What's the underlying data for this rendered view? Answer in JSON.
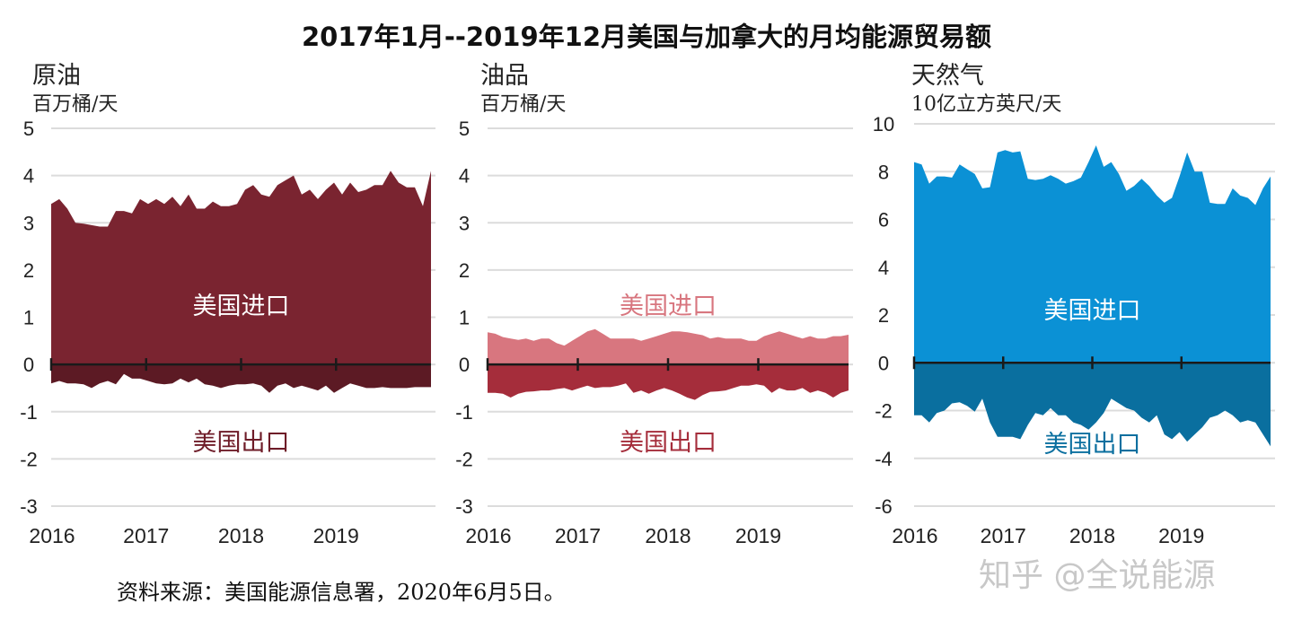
{
  "title": "2017年1月--2019年12月美国与加拿大的月均能源贸易额",
  "source": "资料来源：美国能源信息署，2020年6月5日。",
  "watermark": "知乎 @全说能源",
  "chart_data": [
    {
      "type": "area",
      "title": "原油",
      "ylabel": "百万桶/天",
      "ylim": [
        -3,
        5
      ],
      "yticks": [
        5,
        4,
        3,
        2,
        1,
        0,
        -1,
        -2,
        -3
      ],
      "xticks": [
        "2016",
        "2017",
        "2018",
        "2019"
      ],
      "x_range": [
        "2016-01",
        "2019-12"
      ],
      "grid": true,
      "colors": {
        "import": "#7a2430",
        "export": "#5c1a24",
        "import_label": "#ffffff",
        "export_label": "#6e1c28"
      },
      "series": [
        {
          "name": "美国进口",
          "values": [
            3.4,
            3.5,
            3.3,
            3.0,
            2.98,
            2.95,
            2.92,
            2.92,
            3.25,
            3.25,
            3.2,
            3.5,
            3.4,
            3.5,
            3.4,
            3.55,
            3.35,
            3.6,
            3.3,
            3.3,
            3.45,
            3.35,
            3.35,
            3.4,
            3.7,
            3.8,
            3.6,
            3.55,
            3.8,
            3.9,
            4.0,
            3.6,
            3.7,
            3.5,
            3.7,
            3.85,
            3.6,
            3.85,
            3.65,
            3.7,
            3.8,
            3.8,
            4.1,
            3.85,
            3.75,
            3.75,
            3.35,
            4.1
          ]
        },
        {
          "name": "美国出口",
          "values": [
            -0.4,
            -0.35,
            -0.4,
            -0.4,
            -0.42,
            -0.5,
            -0.4,
            -0.35,
            -0.42,
            -0.2,
            -0.3,
            -0.3,
            -0.35,
            -0.4,
            -0.42,
            -0.4,
            -0.3,
            -0.38,
            -0.3,
            -0.42,
            -0.45,
            -0.5,
            -0.45,
            -0.42,
            -0.42,
            -0.4,
            -0.45,
            -0.6,
            -0.45,
            -0.4,
            -0.5,
            -0.45,
            -0.5,
            -0.55,
            -0.45,
            -0.6,
            -0.5,
            -0.4,
            -0.45,
            -0.5,
            -0.5,
            -0.48,
            -0.5,
            -0.5,
            -0.5,
            -0.48,
            -0.48,
            -0.48
          ]
        }
      ]
    },
    {
      "type": "area",
      "title": "油品",
      "ylabel": "百万桶/天",
      "ylim": [
        -3,
        5
      ],
      "yticks": [
        5,
        4,
        3,
        2,
        1,
        0,
        -1,
        -2,
        -3
      ],
      "xticks": [
        "2016",
        "2017",
        "2018",
        "2019"
      ],
      "x_range": [
        "2016-01",
        "2019-12"
      ],
      "grid": true,
      "colors": {
        "import": "#d8767f",
        "export": "#a52d3b",
        "import_label": "#d8767f",
        "export_label": "#a52d3b"
      },
      "series": [
        {
          "name": "美国进口",
          "values": [
            0.68,
            0.65,
            0.58,
            0.55,
            0.52,
            0.55,
            0.5,
            0.55,
            0.55,
            0.45,
            0.4,
            0.5,
            0.6,
            0.7,
            0.75,
            0.65,
            0.55,
            0.55,
            0.55,
            0.55,
            0.5,
            0.55,
            0.6,
            0.65,
            0.7,
            0.7,
            0.68,
            0.65,
            0.62,
            0.55,
            0.58,
            0.55,
            0.55,
            0.55,
            0.5,
            0.5,
            0.6,
            0.65,
            0.7,
            0.65,
            0.6,
            0.55,
            0.6,
            0.55,
            0.55,
            0.6,
            0.6,
            0.63
          ]
        },
        {
          "name": "美国出口",
          "values": [
            -0.6,
            -0.6,
            -0.62,
            -0.7,
            -0.62,
            -0.58,
            -0.57,
            -0.55,
            -0.55,
            -0.52,
            -0.5,
            -0.55,
            -0.5,
            -0.45,
            -0.5,
            -0.48,
            -0.48,
            -0.45,
            -0.4,
            -0.6,
            -0.55,
            -0.62,
            -0.55,
            -0.5,
            -0.55,
            -0.62,
            -0.7,
            -0.75,
            -0.65,
            -0.58,
            -0.57,
            -0.55,
            -0.5,
            -0.45,
            -0.45,
            -0.42,
            -0.45,
            -0.6,
            -0.5,
            -0.55,
            -0.55,
            -0.5,
            -0.6,
            -0.55,
            -0.6,
            -0.7,
            -0.6,
            -0.55
          ]
        }
      ]
    },
    {
      "type": "area",
      "title": "天然气",
      "ylabel": "10亿立方英尺/天",
      "ylim": [
        -6,
        10
      ],
      "yticks": [
        10,
        8,
        6,
        4,
        2,
        0,
        -2,
        -4,
        -6
      ],
      "xticks": [
        "2016",
        "2017",
        "2018",
        "2019"
      ],
      "x_range": [
        "2016-01",
        "2019-12"
      ],
      "grid": true,
      "colors": {
        "import": "#0b91d5",
        "export": "#0a6f9f",
        "import_label": "#ffffff",
        "export_label": "#0a6f9f"
      },
      "series": [
        {
          "name": "美国进口",
          "values": [
            8.4,
            8.3,
            7.5,
            7.8,
            7.8,
            7.75,
            8.3,
            8.1,
            7.9,
            7.3,
            7.35,
            8.8,
            8.9,
            8.8,
            8.85,
            7.7,
            7.65,
            7.7,
            7.85,
            7.7,
            7.5,
            7.6,
            7.75,
            8.4,
            9.1,
            8.2,
            8.4,
            7.9,
            7.2,
            7.4,
            7.7,
            7.4,
            7.0,
            6.7,
            6.9,
            7.8,
            8.8,
            8.0,
            8.0,
            6.7,
            6.65,
            6.65,
            7.3,
            7.0,
            6.9,
            6.6,
            7.3,
            7.8
          ]
        },
        {
          "name": "美国出口",
          "values": [
            -2.2,
            -2.2,
            -2.5,
            -2.1,
            -2.0,
            -1.7,
            -1.65,
            -1.8,
            -2.05,
            -1.5,
            -2.5,
            -3.1,
            -3.1,
            -3.1,
            -3.2,
            -2.6,
            -2.1,
            -2.2,
            -1.9,
            -2.2,
            -2.2,
            -2.5,
            -2.6,
            -2.8,
            -2.5,
            -2.1,
            -1.5,
            -1.7,
            -1.9,
            -2.0,
            -2.3,
            -2.5,
            -2.2,
            -3.0,
            -3.2,
            -2.9,
            -3.3,
            -3.0,
            -2.7,
            -2.3,
            -2.2,
            -2.0,
            -2.2,
            -2.5,
            -2.4,
            -2.5,
            -3.0,
            -3.5
          ]
        }
      ]
    }
  ]
}
